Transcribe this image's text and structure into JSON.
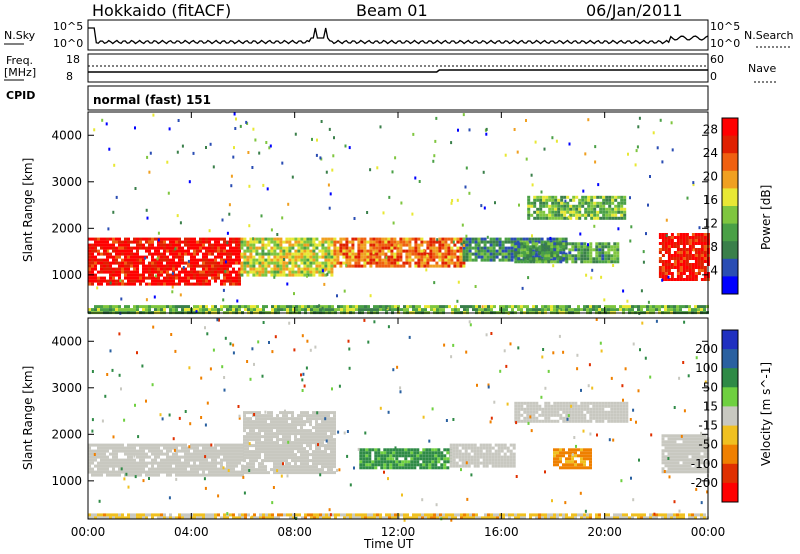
{
  "header": {
    "station": "Hokkaido (fitACF)",
    "beam": "Beam 01",
    "date": "06/Jan/2011"
  },
  "panels": {
    "nsky": {
      "label": "N.Sky",
      "top_tick": "10^5",
      "bottom_tick": "10^0",
      "right_label": "N.Search",
      "right_top": "10^5",
      "right_bottom": "10^0"
    },
    "freq": {
      "label": "Freq.",
      "unit": "[MHz]",
      "top_tick": "18",
      "bottom_tick": "8",
      "right_label": "Nave",
      "right_top": "60",
      "right_bottom": "0"
    },
    "cpid": {
      "label": "CPID",
      "mode": "normal (fast) 151"
    }
  },
  "colors": {
    "power_scale": [
      "#0000ff",
      "#2a4db3",
      "#3a7f4a",
      "#4aa046",
      "#7fc63f",
      "#e8e834",
      "#f0a020",
      "#ef6010",
      "#e02000",
      "#ff0000"
    ],
    "velocity_scale": [
      "#2030c0",
      "#2a60a0",
      "#2f8a46",
      "#6fd040",
      "#c8c8c0",
      "#f0c020",
      "#ef8000",
      "#e03000",
      "#ff0000"
    ]
  },
  "chart_data": [
    {
      "type": "heatmap",
      "title": "",
      "xlabel": "Time UT",
      "ylabel": "Slant Range [km]",
      "x_ticks": [
        "00:00",
        "04:00",
        "08:00",
        "12:00",
        "16:00",
        "20:00",
        "00:00"
      ],
      "xlim_hours": [
        0,
        24
      ],
      "ylim_km": [
        180,
        4500
      ],
      "y_ticks": [
        1000,
        2000,
        3000,
        4000
      ],
      "colorbar_label": "Power [dB]",
      "colorbar_ticks": [
        4,
        8,
        12,
        16,
        20,
        24,
        28
      ],
      "colorbar_range": [
        0,
        30
      ],
      "regions": [
        {
          "t": [
            0.0,
            5.9
          ],
          "r": [
            800,
            1800
          ],
          "value": 28
        },
        {
          "t": [
            5.9,
            9.5
          ],
          "r": [
            1000,
            1800
          ],
          "value": 16
        },
        {
          "t": [
            9.5,
            14.5
          ],
          "r": [
            1200,
            1800
          ],
          "value": 22
        },
        {
          "t": [
            14.5,
            18.5
          ],
          "r": [
            1300,
            1800
          ],
          "value": 8
        },
        {
          "t": [
            17.0,
            20.8
          ],
          "r": [
            2200,
            2700
          ],
          "value": 12
        },
        {
          "t": [
            16.5,
            20.5
          ],
          "r": [
            1300,
            1700
          ],
          "value": 10
        },
        {
          "t": [
            22.1,
            24.0
          ],
          "r": [
            900,
            1900
          ],
          "value": 28
        },
        {
          "t": [
            0.0,
            24.0
          ],
          "r": [
            200,
            350
          ],
          "value": 12
        }
      ]
    },
    {
      "type": "heatmap",
      "title": "",
      "xlabel": "Time UT",
      "ylabel": "Slant Range [km]",
      "x_ticks": [
        "00:00",
        "04:00",
        "08:00",
        "12:00",
        "16:00",
        "20:00",
        "00:00"
      ],
      "xlim_hours": [
        0,
        24
      ],
      "ylim_km": [
        180,
        4500
      ],
      "y_ticks": [
        1000,
        2000,
        3000,
        4000
      ],
      "colorbar_label": "Velocity [m s^-1]",
      "colorbar_ticks": [
        200,
        100,
        50,
        15,
        -15,
        -50,
        -100,
        -200
      ],
      "regions": [
        {
          "t": [
            0.0,
            6.0
          ],
          "r": [
            1100,
            1800
          ],
          "value": 0
        },
        {
          "t": [
            6.0,
            9.5
          ],
          "r": [
            1200,
            2500
          ],
          "value": 0
        },
        {
          "t": [
            10.5,
            14.0
          ],
          "r": [
            1300,
            1700
          ],
          "value": 40
        },
        {
          "t": [
            14.0,
            16.5
          ],
          "r": [
            1300,
            1800
          ],
          "value": 0
        },
        {
          "t": [
            18.0,
            19.5
          ],
          "r": [
            1300,
            1700
          ],
          "value": -40
        },
        {
          "t": [
            16.5,
            20.8
          ],
          "r": [
            2300,
            2700
          ],
          "value": 0
        },
        {
          "t": [
            22.2,
            24.0
          ],
          "r": [
            1200,
            2000
          ],
          "value": 0
        },
        {
          "t": [
            0.0,
            24.0
          ],
          "r": [
            200,
            300
          ],
          "value": -20
        }
      ]
    }
  ]
}
